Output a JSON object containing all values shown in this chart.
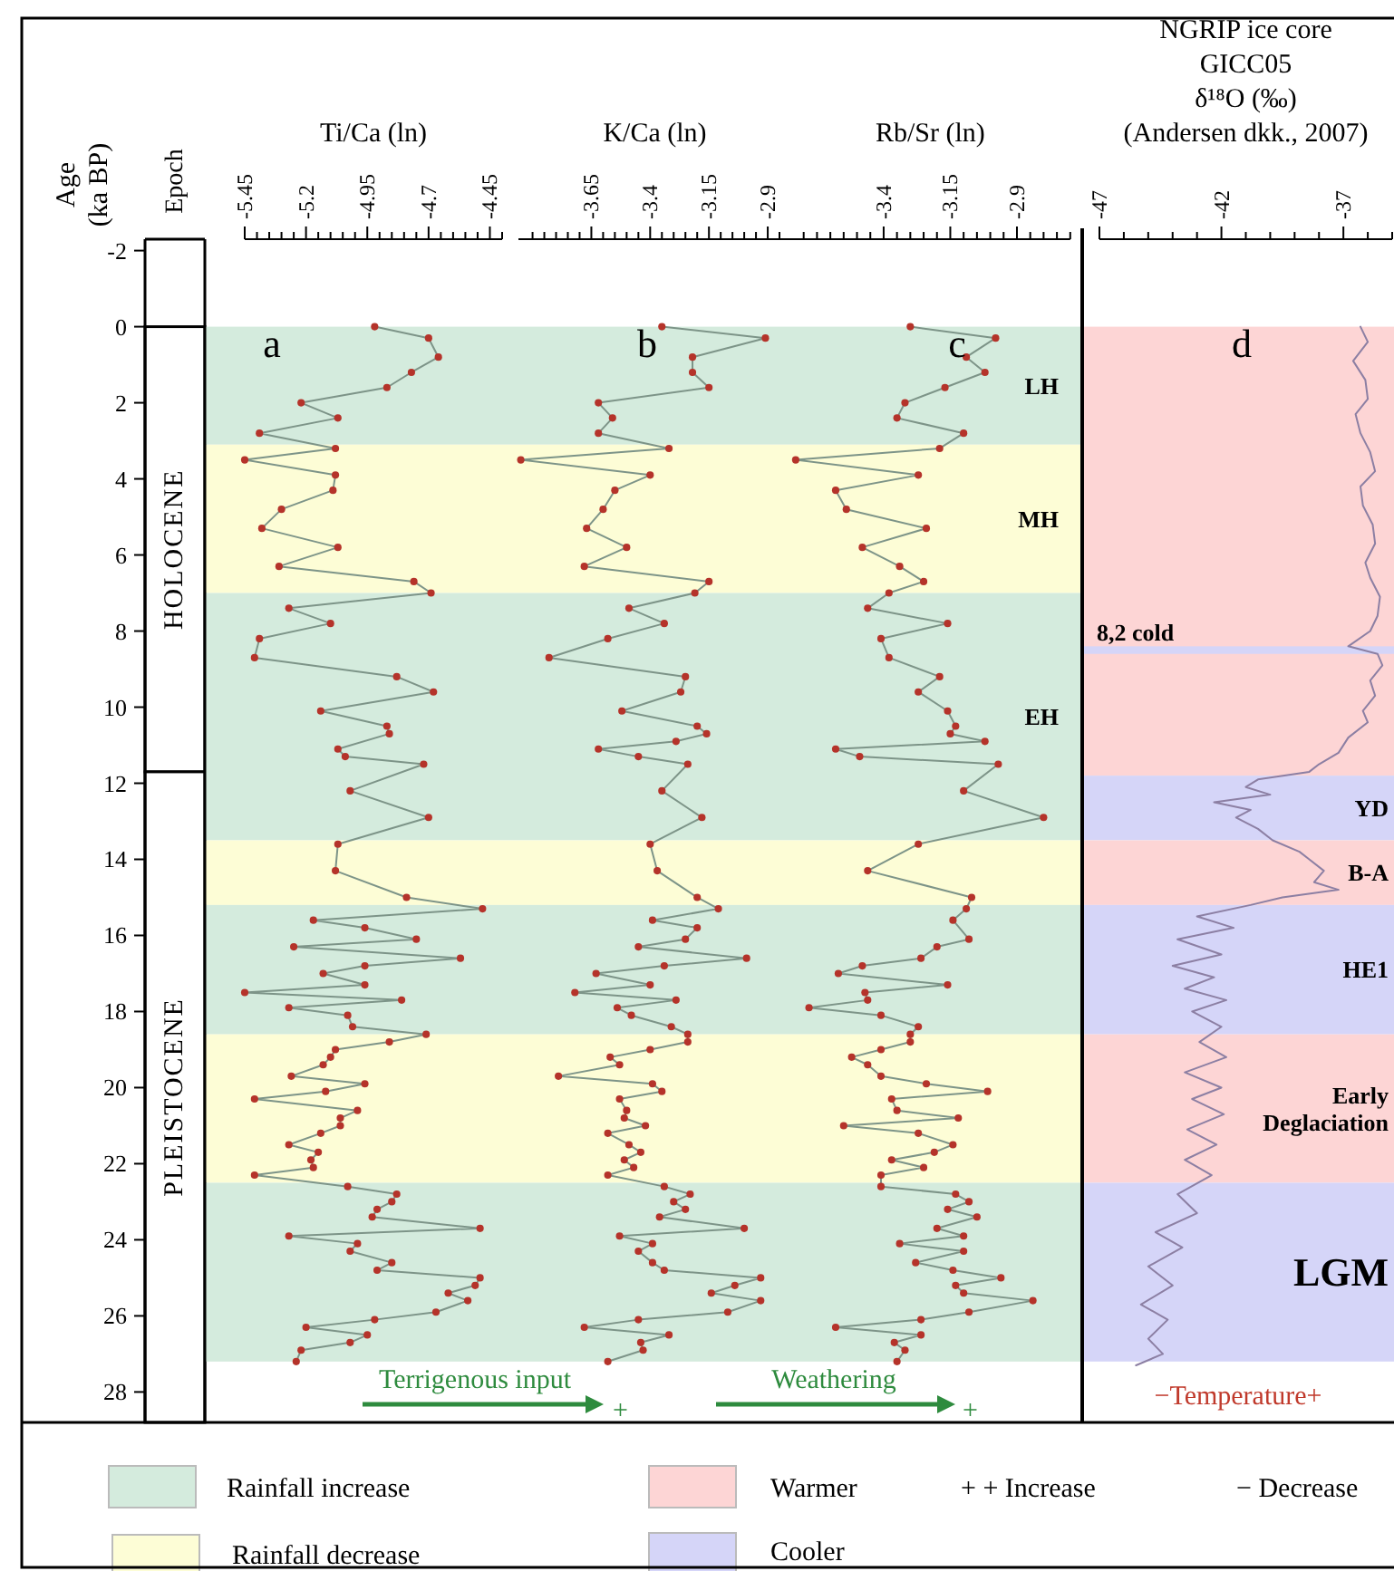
{
  "chart_data": [
    {
      "type": "bar",
      "stacked": true,
      "ylabel": "Age (ka BP)",
      "tick_labels": "y",
      "categories": [
        null
      ],
      "ylim": [
        28.8,
        -2.3
      ],
      "yticks": [
        -2,
        0,
        2,
        4,
        6,
        8,
        10,
        12,
        14,
        16,
        18,
        20,
        22,
        24,
        26,
        28
      ],
      "series": [
        {
          "name": "HOLOCENE",
          "color": "#ffffff",
          "values": [
            11.7
          ]
        },
        {
          "name": "PLEISTOCENE",
          "color": "#ffffff",
          "values": [
            17.1
          ]
        }
      ],
      "annotations": [
        "Epoch"
      ]
    },
    {
      "type": "line",
      "orientation": "horizontal",
      "xlabel": "Ti/Ca (ln)",
      "marker": "circle",
      "tick_labels": "x",
      "xlim": [
        -5.45,
        -4.4
      ],
      "ylim": [
        28.8,
        -2.3
      ],
      "xticks": [
        -5.45,
        {
          "value": -5.4,
          "label": null
        },
        {
          "value": -5.35,
          "label": null
        },
        {
          "value": -5.3,
          "label": null
        },
        {
          "value": -5.25,
          "label": null
        },
        -5.2,
        {
          "value": -5.15,
          "label": null
        },
        {
          "value": -5.1,
          "label": null
        },
        {
          "value": -5.05,
          "label": null
        },
        {
          "value": -5,
          "label": null
        },
        -4.95,
        {
          "value": -4.9,
          "label": null
        },
        {
          "value": -4.85,
          "label": null
        },
        {
          "value": -4.8,
          "label": null
        },
        {
          "value": -4.75,
          "label": null
        },
        -4.7,
        {
          "value": -4.65,
          "label": null
        },
        {
          "value": -4.6,
          "label": null
        },
        {
          "value": -4.55,
          "label": null
        },
        {
          "value": -4.5,
          "label": null
        },
        -4.45,
        {
          "value": -4.4,
          "label": null
        }
      ],
      "series": [
        {
          "color": "#7d9488",
          "x": [
            0,
            0.3,
            0.8,
            1.2,
            1.6,
            2.0,
            2.4,
            2.8,
            3.2,
            3.5,
            3.9,
            4.3,
            4.8,
            5.3,
            5.8,
            6.3,
            6.7,
            7.0,
            7.4,
            7.8,
            8.2,
            8.7,
            9.2,
            9.6,
            10.1,
            10.5,
            10.7,
            11.1,
            11.3,
            11.5,
            12.2,
            12.9,
            13.6,
            14.3,
            15.0,
            15.3,
            15.6,
            15.8,
            16.1,
            16.3,
            16.6,
            16.8,
            17.0,
            17.3,
            17.5,
            17.7,
            17.9,
            18.1,
            18.4,
            18.6,
            18.8,
            19.0,
            19.2,
            19.4,
            19.7,
            19.9,
            20.1,
            20.3,
            20.6,
            20.8,
            21.0,
            21.2,
            21.5,
            21.7,
            21.9,
            22.1,
            22.3,
            22.6,
            22.8,
            23.0,
            23.2,
            23.4,
            23.7,
            23.9,
            24.1,
            24.3,
            24.6,
            24.8,
            25.0,
            25.2,
            25.4,
            25.6,
            25.9,
            26.1,
            26.3,
            26.5,
            26.7,
            26.9,
            27.2
          ],
          "values": [
            -4.92,
            -4.7,
            -4.66,
            -4.77,
            -4.87,
            -5.22,
            -5.07,
            -5.39,
            -5.08,
            -5.45,
            -5.08,
            -5.09,
            -5.3,
            -5.38,
            -5.07,
            -5.31,
            -4.76,
            -4.69,
            -5.27,
            -5.1,
            -5.39,
            -5.41,
            -4.83,
            -4.68,
            -5.14,
            -4.87,
            -4.86,
            -5.07,
            -5.04,
            -4.72,
            -5.02,
            -4.7,
            -5.07,
            -5.08,
            -4.79,
            -4.48,
            -5.17,
            -4.96,
            -4.75,
            -5.25,
            -4.57,
            -4.96,
            -5.13,
            -4.96,
            -5.45,
            -4.81,
            -5.27,
            -5.03,
            -5.01,
            -4.71,
            -4.86,
            -5.08,
            -5.1,
            -5.13,
            -5.26,
            -4.96,
            -5.12,
            -5.41,
            -4.99,
            -5.06,
            -5.06,
            -5.14,
            -5.27,
            -5.15,
            -5.18,
            -5.17,
            -5.41,
            -5.03,
            -4.83,
            -4.85,
            -4.91,
            -4.93,
            -4.49,
            -5.27,
            -4.99,
            -5.02,
            -4.85,
            -4.91,
            -4.49,
            -4.51,
            -4.62,
            -4.54,
            -4.67,
            -4.92,
            -5.2,
            -4.95,
            -5.02,
            -5.22,
            -5.24
          ]
        }
      ],
      "bands": [
        {
          "axis": "y",
          "from": 0,
          "to": 3.1,
          "color": "#d4ebdd"
        },
        {
          "axis": "y",
          "from": 3.1,
          "to": 7.0,
          "color": "#fdfdd6"
        },
        {
          "axis": "y",
          "from": 7.0,
          "to": 13.5,
          "color": "#d4ebdd"
        },
        {
          "axis": "y",
          "from": 13.5,
          "to": 15.2,
          "color": "#fdfdd6"
        },
        {
          "axis": "y",
          "from": 15.2,
          "to": 18.6,
          "color": "#d4ebdd"
        },
        {
          "axis": "y",
          "from": 18.6,
          "to": 22.5,
          "color": "#fdfdd6"
        },
        {
          "axis": "y",
          "from": 22.5,
          "to": 27.2,
          "color": "#d4ebdd"
        }
      ],
      "annotations": [
        "a",
        "Terrigenous input",
        "+",
        "Rainfall increase",
        "Rainfall decrease"
      ]
    },
    {
      "type": "line",
      "orientation": "horizontal",
      "xlabel": "K/Ca (ln)",
      "marker": "circle",
      "tick_labels": "x",
      "xlim": [
        -3.96,
        -2.8
      ],
      "xticks": [
        {
          "value": -3.9,
          "label": null
        },
        {
          "value": -3.85,
          "label": null
        },
        {
          "value": -3.8,
          "label": null
        },
        {
          "value": -3.75,
          "label": null
        },
        {
          "value": -3.7,
          "label": null
        },
        -3.65,
        {
          "value": -3.6,
          "label": null
        },
        {
          "value": -3.55,
          "label": null
        },
        {
          "value": -3.5,
          "label": null
        },
        {
          "value": -3.45,
          "label": null
        },
        -3.4,
        {
          "value": -3.35,
          "label": null
        },
        {
          "value": -3.3,
          "label": null
        },
        {
          "value": -3.25,
          "label": null
        },
        {
          "value": -3.2,
          "label": null
        },
        -3.15,
        {
          "value": -3.1,
          "label": null
        },
        {
          "value": -3.05,
          "label": null
        },
        {
          "value": -3,
          "label": null
        },
        {
          "value": -2.95,
          "label": null
        },
        -2.9,
        {
          "value": -2.85,
          "label": null
        }
      ],
      "ylim": [
        28.8,
        -2.3
      ],
      "series": [
        {
          "color": "#7d9488",
          "x": [
            0,
            0.3,
            0.8,
            1.2,
            1.6,
            2.0,
            2.4,
            2.8,
            3.2,
            3.5,
            3.9,
            4.3,
            4.8,
            5.3,
            5.8,
            6.3,
            6.7,
            7.0,
            7.4,
            7.8,
            8.2,
            8.7,
            9.2,
            9.6,
            10.1,
            10.5,
            10.7,
            10.9,
            11.1,
            11.3,
            11.5,
            12.2,
            12.9,
            13.6,
            14.3,
            15.0,
            15.3,
            15.6,
            15.8,
            16.1,
            16.3,
            16.6,
            16.8,
            17.0,
            17.3,
            17.5,
            17.7,
            17.9,
            18.1,
            18.4,
            18.6,
            18.8,
            19.0,
            19.2,
            19.4,
            19.7,
            19.9,
            20.1,
            20.3,
            20.6,
            20.8,
            21.0,
            21.2,
            21.5,
            21.7,
            21.9,
            22.1,
            22.3,
            22.6,
            22.8,
            23.0,
            23.2,
            23.4,
            23.7,
            23.9,
            24.1,
            24.3,
            24.6,
            24.8,
            25.0,
            25.2,
            25.4,
            25.6,
            25.9,
            26.1,
            26.3,
            26.5,
            26.7,
            26.9,
            27.2
          ],
          "values": [
            -3.35,
            -2.91,
            -3.22,
            -3.22,
            -3.15,
            -3.62,
            -3.56,
            -3.62,
            -3.32,
            -3.95,
            -3.4,
            -3.55,
            -3.6,
            -3.67,
            -3.5,
            -3.68,
            -3.15,
            -3.21,
            -3.49,
            -3.34,
            -3.58,
            -3.83,
            -3.25,
            -3.27,
            -3.52,
            -3.2,
            -3.16,
            -3.29,
            -3.62,
            -3.45,
            -3.24,
            -3.35,
            -3.18,
            -3.4,
            -3.37,
            -3.2,
            -3.11,
            -3.39,
            -3.2,
            -3.25,
            -3.45,
            -2.99,
            -3.34,
            -3.63,
            -3.4,
            -3.72,
            -3.29,
            -3.54,
            -3.48,
            -3.31,
            -3.24,
            -3.24,
            -3.4,
            -3.57,
            -3.53,
            -3.79,
            -3.39,
            -3.35,
            -3.53,
            -3.5,
            -3.51,
            -3.42,
            -3.58,
            -3.49,
            -3.44,
            -3.51,
            -3.47,
            -3.58,
            -3.34,
            -3.23,
            -3.3,
            -3.25,
            -3.36,
            -3.0,
            -3.53,
            -3.39,
            -3.45,
            -3.39,
            -3.34,
            -2.93,
            -3.04,
            -3.14,
            -2.93,
            -3.07,
            -3.45,
            -3.68,
            -3.32,
            -3.44,
            -3.43,
            -3.58
          ]
        }
      ],
      "bands": [
        {
          "axis": "y",
          "from": 0,
          "to": 3.1,
          "color": "#d4ebdd"
        },
        {
          "axis": "y",
          "from": 3.1,
          "to": 7.0,
          "color": "#fdfdd6"
        },
        {
          "axis": "y",
          "from": 7.0,
          "to": 13.5,
          "color": "#d4ebdd"
        },
        {
          "axis": "y",
          "from": 13.5,
          "to": 15.2,
          "color": "#fdfdd6"
        },
        {
          "axis": "y",
          "from": 15.2,
          "to": 18.6,
          "color": "#d4ebdd"
        },
        {
          "axis": "y",
          "from": 18.6,
          "to": 22.5,
          "color": "#fdfdd6"
        },
        {
          "axis": "y",
          "from": 22.5,
          "to": 27.2,
          "color": "#d4ebdd"
        }
      ],
      "annotations": [
        "b"
      ]
    },
    {
      "type": "line",
      "orientation": "horizontal",
      "xlabel": "Rb/Sr (ln)",
      "marker": "circle",
      "tick_labels": "x",
      "xlim": [
        -3.75,
        -2.7
      ],
      "xticks": [
        {
          "value": -3.7,
          "label": null
        },
        {
          "value": -3.65,
          "label": null
        },
        {
          "value": -3.6,
          "label": null
        },
        {
          "value": -3.55,
          "label": null
        },
        {
          "value": -3.5,
          "label": null
        },
        {
          "value": -3.45,
          "label": null
        },
        -3.4,
        {
          "value": -3.35,
          "label": null
        },
        {
          "value": -3.3,
          "label": null
        },
        {
          "value": -3.25,
          "label": null
        },
        {
          "value": -3.2,
          "label": null
        },
        -3.15,
        {
          "value": -3.1,
          "label": null
        },
        {
          "value": -3.05,
          "label": null
        },
        {
          "value": -3,
          "label": null
        },
        {
          "value": -2.95,
          "label": null
        },
        -2.9,
        {
          "value": -2.85,
          "label": null
        },
        {
          "value": -2.8,
          "label": null
        },
        {
          "value": -2.75,
          "label": null
        },
        {
          "value": -2.7,
          "label": null
        }
      ],
      "ylim": [
        28.8,
        -2.3
      ],
      "series": [
        {
          "color": "#7d9488",
          "x": [
            0,
            0.3,
            0.8,
            1.2,
            1.6,
            2.0,
            2.4,
            2.8,
            3.2,
            3.5,
            3.9,
            4.3,
            4.8,
            5.3,
            5.8,
            6.3,
            6.7,
            7.0,
            7.4,
            7.8,
            8.2,
            8.7,
            9.2,
            9.6,
            10.1,
            10.5,
            10.7,
            10.9,
            11.1,
            11.3,
            11.5,
            12.2,
            12.9,
            13.6,
            14.3,
            15.0,
            15.3,
            15.6,
            16.1,
            16.3,
            16.6,
            16.8,
            17.0,
            17.3,
            17.5,
            17.7,
            17.9,
            18.1,
            18.4,
            18.6,
            18.8,
            19.0,
            19.2,
            19.4,
            19.7,
            19.9,
            20.1,
            20.3,
            20.6,
            20.8,
            21.0,
            21.2,
            21.5,
            21.7,
            21.9,
            22.1,
            22.3,
            22.6,
            22.8,
            23.0,
            23.2,
            23.4,
            23.7,
            23.9,
            24.1,
            24.3,
            24.6,
            24.8,
            25.0,
            25.2,
            25.4,
            25.6,
            25.9,
            26.1,
            26.3,
            26.5,
            26.7,
            26.9,
            27.2
          ],
          "values": [
            -3.3,
            -2.98,
            -3.09,
            -3.02,
            -3.17,
            -3.32,
            -3.35,
            -3.1,
            -3.19,
            -3.73,
            -3.27,
            -3.58,
            -3.54,
            -3.24,
            -3.48,
            -3.34,
            -3.25,
            -3.38,
            -3.46,
            -3.16,
            -3.41,
            -3.38,
            -3.19,
            -3.27,
            -3.16,
            -3.13,
            -3.15,
            -3.02,
            -3.58,
            -3.49,
            -2.97,
            -3.1,
            -2.8,
            -3.27,
            -3.46,
            -3.07,
            -3.09,
            -3.14,
            -3.08,
            -3.2,
            -3.26,
            -3.48,
            -3.57,
            -3.16,
            -3.47,
            -3.46,
            -3.68,
            -3.41,
            -3.27,
            -3.3,
            -3.3,
            -3.41,
            -3.52,
            -3.46,
            -3.41,
            -3.24,
            -3.01,
            -3.37,
            -3.35,
            -3.12,
            -3.55,
            -3.27,
            -3.14,
            -3.21,
            -3.37,
            -3.25,
            -3.41,
            -3.41,
            -3.13,
            -3.08,
            -3.16,
            -3.05,
            -3.2,
            -3.1,
            -3.34,
            -3.1,
            -3.28,
            -3.14,
            -2.96,
            -3.13,
            -3.1,
            -2.84,
            -3.08,
            -3.26,
            -3.58,
            -3.26,
            -3.36,
            -3.32,
            -3.35
          ]
        }
      ],
      "bands": [
        {
          "axis": "y",
          "from": 0,
          "to": 3.1,
          "color": "#d4ebdd",
          "label": "LH"
        },
        {
          "axis": "y",
          "from": 3.1,
          "to": 7.0,
          "color": "#fdfdd6",
          "label": "MH"
        },
        {
          "axis": "y",
          "from": 7.0,
          "to": 13.5,
          "color": "#d4ebdd",
          "label": "EH"
        },
        {
          "axis": "y",
          "from": 13.5,
          "to": 15.2,
          "color": "#fdfdd6"
        },
        {
          "axis": "y",
          "from": 15.2,
          "to": 18.6,
          "color": "#d4ebdd"
        },
        {
          "axis": "y",
          "from": 18.6,
          "to": 22.5,
          "color": "#fdfdd6"
        },
        {
          "axis": "y",
          "from": 22.5,
          "to": 27.2,
          "color": "#d4ebdd"
        }
      ],
      "annotations": [
        "c",
        "Weathering",
        "+"
      ]
    },
    {
      "type": "line",
      "orientation": "horizontal",
      "xlabel": "NGRIP ice core\nGICC05\nδ¹⁸O (‰)\n(Andersen dkk., 2007)",
      "tick_labels": "x",
      "xlim": [
        -47,
        -35
      ],
      "xticks": [
        -47,
        {
          "value": -46,
          "label": null
        },
        {
          "value": -45,
          "label": null
        },
        {
          "value": -44,
          "label": null
        },
        {
          "value": -43,
          "label": null
        },
        -42,
        {
          "value": -41,
          "label": null
        },
        {
          "value": -40,
          "label": null
        },
        {
          "value": -39,
          "label": null
        },
        {
          "value": -38,
          "label": null
        },
        -37,
        {
          "value": -36,
          "label": null
        },
        {
          "value": -35,
          "label": null
        }
      ],
      "ylim": [
        28.8,
        -2.3
      ],
      "series": [
        {
          "color": "#8c7fa3",
          "x": [
            0,
            0.4,
            0.9,
            1.4,
            1.9,
            2.3,
            2.8,
            3.3,
            3.8,
            4.2,
            4.7,
            5.2,
            5.7,
            6.2,
            6.6,
            7.1,
            7.6,
            8.0,
            8.4,
            8.6,
            8.9,
            9.3,
            9.7,
            10.1,
            10.4,
            10.8,
            11.2,
            11.5,
            11.7,
            11.9,
            12.1,
            12.3,
            12.5,
            12.7,
            12.9,
            13.2,
            13.5,
            13.8,
            14.0,
            14.3,
            14.6,
            14.8,
            15.0,
            15.2,
            15.5,
            15.8,
            16.1,
            16.5,
            16.8,
            17.1,
            17.4,
            17.7,
            18.0,
            18.4,
            18.8,
            19.2,
            19.6,
            20.0,
            20.3,
            20.7,
            21.1,
            21.5,
            21.9,
            22.3,
            22.8,
            23.3,
            23.8,
            24.2,
            24.7,
            25.2,
            25.7,
            26.1,
            26.6,
            27.0,
            27.3
          ],
          "values": [
            -36.3,
            -36.0,
            -36.6,
            -36.1,
            -36.0,
            -36.5,
            -36.3,
            -35.9,
            -35.7,
            -36.3,
            -36.2,
            -35.8,
            -35.7,
            -36.1,
            -35.9,
            -35.5,
            -35.6,
            -35.9,
            -36.8,
            -35.6,
            -35.4,
            -35.9,
            -35.7,
            -36.2,
            -36.0,
            -36.8,
            -37.2,
            -38.0,
            -38.4,
            -40.5,
            -41.0,
            -40.0,
            -42.3,
            -40.8,
            -41.4,
            -40.5,
            -39.9,
            -38.8,
            -38.4,
            -37.8,
            -38.2,
            -37.2,
            -39.5,
            -40.8,
            -43.0,
            -41.5,
            -43.8,
            -42.0,
            -44.0,
            -42.3,
            -43.5,
            -41.8,
            -43.2,
            -42.0,
            -42.9,
            -41.8,
            -43.5,
            -42.0,
            -43.2,
            -41.9,
            -43.4,
            -42.2,
            -43.5,
            -42.4,
            -43.8,
            -43.0,
            -44.7,
            -43.6,
            -45.0,
            -44.0,
            -45.3,
            -44.2,
            -45.0,
            -44.4,
            -45.5
          ]
        }
      ],
      "bands": [
        {
          "axis": "y",
          "from": 0,
          "to": 11.8,
          "color": "#fdd5d5"
        },
        {
          "axis": "y",
          "from": 8.4,
          "to": 8.6,
          "color": "#d5d5f8",
          "label": "8,2 cold"
        },
        {
          "axis": "y",
          "from": 11.8,
          "to": 13.5,
          "color": "#d5d5f8",
          "label": "YD"
        },
        {
          "axis": "y",
          "from": 13.5,
          "to": 15.2,
          "color": "#fdd5d5",
          "label": "B-A"
        },
        {
          "axis": "y",
          "from": 15.2,
          "to": 18.6,
          "color": "#d5d5f8",
          "label": "HE1"
        },
        {
          "axis": "y",
          "from": 18.6,
          "to": 22.5,
          "color": "#fdd5d5",
          "label": "Early Deglaciation"
        },
        {
          "axis": "y",
          "from": 22.5,
          "to": 27.2,
          "color": "#d5d5f8",
          "label": "LGM"
        }
      ],
      "annotations": [
        "d",
        "−Temperature+",
        "Warmer",
        "Cooler",
        "+ + Increase",
        "− Decrease"
      ]
    }
  ]
}
